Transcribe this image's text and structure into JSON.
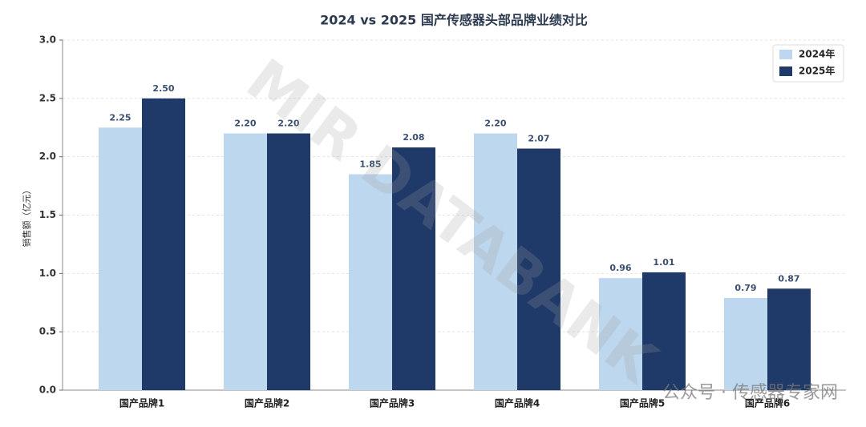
{
  "chart_data": {
    "type": "bar",
    "title": "2024 vs 2025  国产传感器头部品牌业绩对比",
    "y_label": "销售额（亿元）",
    "categories": [
      "国产品牌1",
      "国产品牌2",
      "国产品牌3",
      "国产品牌4",
      "国产品牌5",
      "国产品牌6"
    ],
    "series": [
      {
        "name": "2024年",
        "color": "#bdd7ee",
        "values": [
          2.25,
          2.2,
          1.85,
          2.2,
          0.96,
          0.79
        ],
        "value_labels": [
          "2.25",
          "2.20",
          "1.85",
          "2.20",
          "0.96",
          "0.79"
        ]
      },
      {
        "name": "2025年",
        "color": "#1f3a68",
        "values": [
          2.5,
          2.2,
          2.08,
          2.07,
          1.01,
          0.87
        ],
        "value_labels": [
          "2.50",
          "2.20",
          "2.08",
          "2.07",
          "1.01",
          "0.87"
        ]
      }
    ],
    "ylim": [
      0,
      3
    ],
    "yticks": [
      {
        "value": 0,
        "label": "0.0"
      },
      0.5,
      {
        "value": 1,
        "label": "1.0"
      },
      1.5,
      {
        "value": 2,
        "label": "2.0"
      },
      2.5,
      {
        "value": 3,
        "label": "3.0"
      }
    ],
    "grid": true,
    "legend": "upper right",
    "watermark": "MIR DATABANK",
    "source_mark": "公众号 · 传感器专家网"
  }
}
